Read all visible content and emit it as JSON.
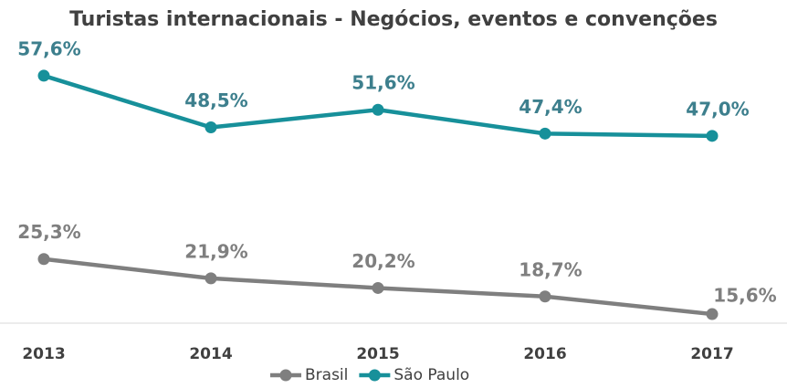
{
  "chart_data": {
    "type": "line",
    "title": "Turistas internacionais - Negócios, eventos e convenções",
    "categories": [
      "2013",
      "2014",
      "2015",
      "2016",
      "2017"
    ],
    "ylim": [
      14,
      60
    ],
    "series": [
      {
        "name": "Brasil",
        "color": "#7f7f7f",
        "label_color": "#7f7f7f",
        "values": [
          25.3,
          21.9,
          20.2,
          18.7,
          15.6
        ],
        "value_labels": [
          "25,3%",
          "21,9%",
          "20,2%",
          "18,7%",
          "15,6%"
        ]
      },
      {
        "name": "São Paulo",
        "color": "#17909a",
        "label_color": "#3d7f8d",
        "values": [
          57.6,
          48.5,
          51.6,
          47.4,
          47.0
        ],
        "value_labels": [
          "57,6%",
          "48,5%",
          "51,6%",
          "47,4%",
          "47,0%"
        ]
      }
    ]
  }
}
